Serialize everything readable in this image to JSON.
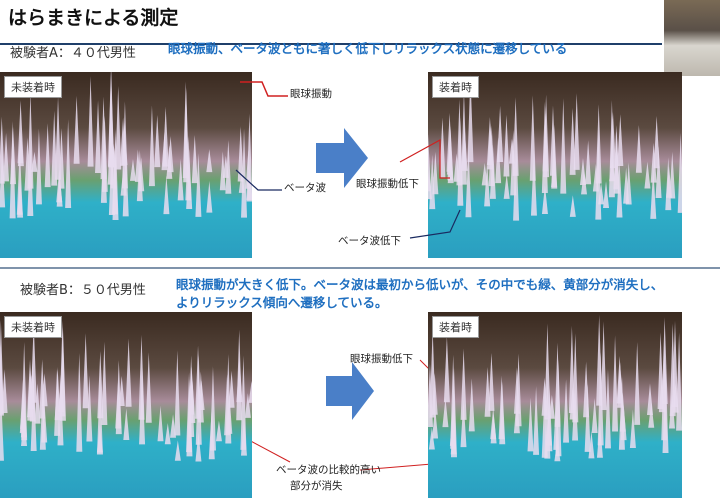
{
  "title": "はらまきによる測定",
  "subject_a": {
    "label": "被験者A：４０代男性",
    "note": "眼球振動、ベータ波ともに著しく低下しリラックス状態に遷移している",
    "before_label": "未装着時",
    "after_label": "装着時",
    "ann_eye": "眼球振動",
    "ann_beta": "ベータ波",
    "ann_eye_down": "眼球振動低下",
    "ann_beta_down": "ベータ波低下"
  },
  "subject_b": {
    "label": "被験者B：５０代男性",
    "note_line1": "眼球振動が大きく低下。ベータ波は最初から低いが、その中でも緑、黄部分が消失し、",
    "note_line2": "よりリラックス傾向へ遷移している。",
    "before_label": "未装着時",
    "after_label": "装着時",
    "ann_eye_down": "眼球振動低下",
    "ann_beta_line1": "ベータ波の比較的高い",
    "ann_beta_line2": "部分が消失"
  },
  "colors": {
    "accent": "#1f6fc0",
    "arrow": "#4a7fc8",
    "annotation_line": "#d02020"
  }
}
